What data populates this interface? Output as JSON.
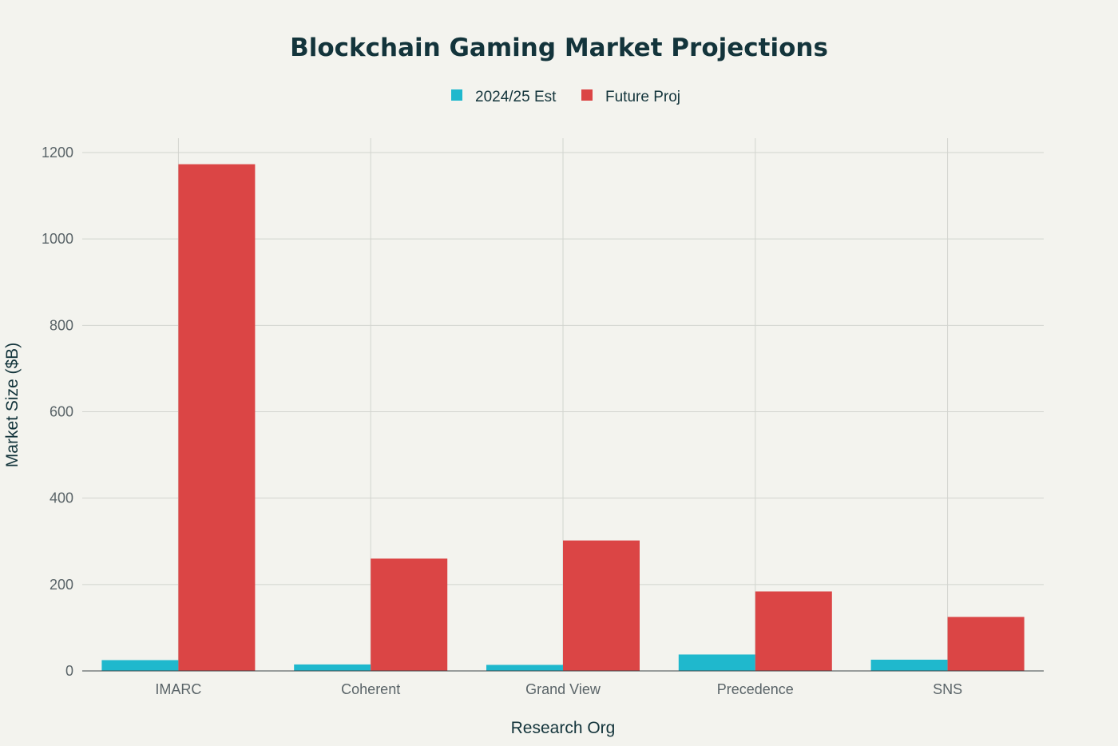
{
  "chart_data": {
    "type": "bar",
    "title": "Blockchain Gaming Market Projections",
    "xlabel": "Research Org",
    "ylabel": "Market Size ($B)",
    "categories": [
      "IMARC",
      "Coherent",
      "Grand View",
      "Precedence",
      "SNS"
    ],
    "series": [
      {
        "name": "2024/25 Est",
        "color": "#1fb8cd",
        "values": [
          25,
          15,
          14,
          38,
          26
        ]
      },
      {
        "name": "Future Proj",
        "color": "#db4545",
        "values": [
          1173,
          260,
          302,
          184,
          125
        ]
      }
    ],
    "ylim": [
      0,
      1200
    ],
    "yticks": [
      0,
      200,
      400,
      600,
      800,
      1000,
      1200
    ],
    "grid": true,
    "legend_position": "top-center",
    "background": "#f3f3ee"
  }
}
